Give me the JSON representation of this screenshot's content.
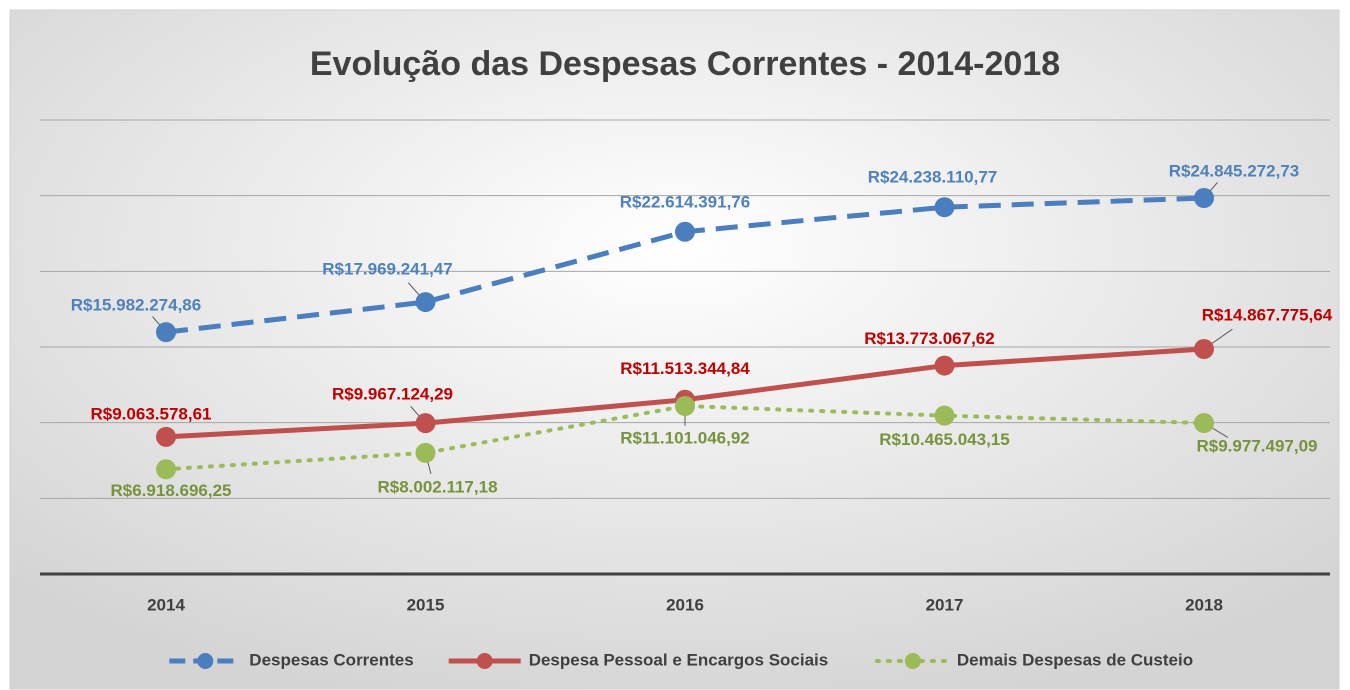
{
  "chart_data": {
    "type": "line",
    "title": "Evolução das Despesas Correntes -  2014-2018",
    "categories": [
      "2014",
      "2015",
      "2016",
      "2017",
      "2018"
    ],
    "ylim": [
      0,
      30000000
    ],
    "yticks": [
      0,
      5000000,
      10000000,
      15000000,
      20000000,
      25000000,
      30000000
    ],
    "grid": true,
    "legend": "bottom",
    "series": [
      {
        "name": "Despesas Correntes",
        "color": "#4a7ebf",
        "label_color": "#4f81bd",
        "style": "dashed",
        "values": [
          15982274.86,
          17969241.47,
          22614391.76,
          24238110.77,
          24845272.73
        ],
        "value_labels": [
          "R$15.982.274,86",
          "R$17.969.241,47",
          "R$22.614.391,76",
          "R$24.238.110,77",
          "R$24.845.272,73"
        ]
      },
      {
        "name": "Despesa Pessoal e Encargos Sociais",
        "color": "#c0504d",
        "label_color": "#c00000",
        "style": "solid",
        "values": [
          9063578.61,
          9967124.29,
          11513344.84,
          13773067.62,
          14867775.64
        ],
        "value_labels": [
          "R$9.063.578,61",
          "R$9.967.124,29",
          "R$11.513.344,84",
          "R$13.773.067,62",
          "R$14.867.775,64"
        ]
      },
      {
        "name": "Demais Despesas de Custeio",
        "color": "#9bbb59",
        "label_color": "#77933c",
        "style": "dotted",
        "values": [
          6918696.25,
          8002117.18,
          11101046.92,
          10465043.15,
          9977497.09
        ],
        "value_labels": [
          "R$6.918.696,25",
          "R$8.002.117,18",
          "R$11.101.046,92",
          "R$10.465.043,15",
          "R$9.977.497,09"
        ]
      }
    ]
  }
}
